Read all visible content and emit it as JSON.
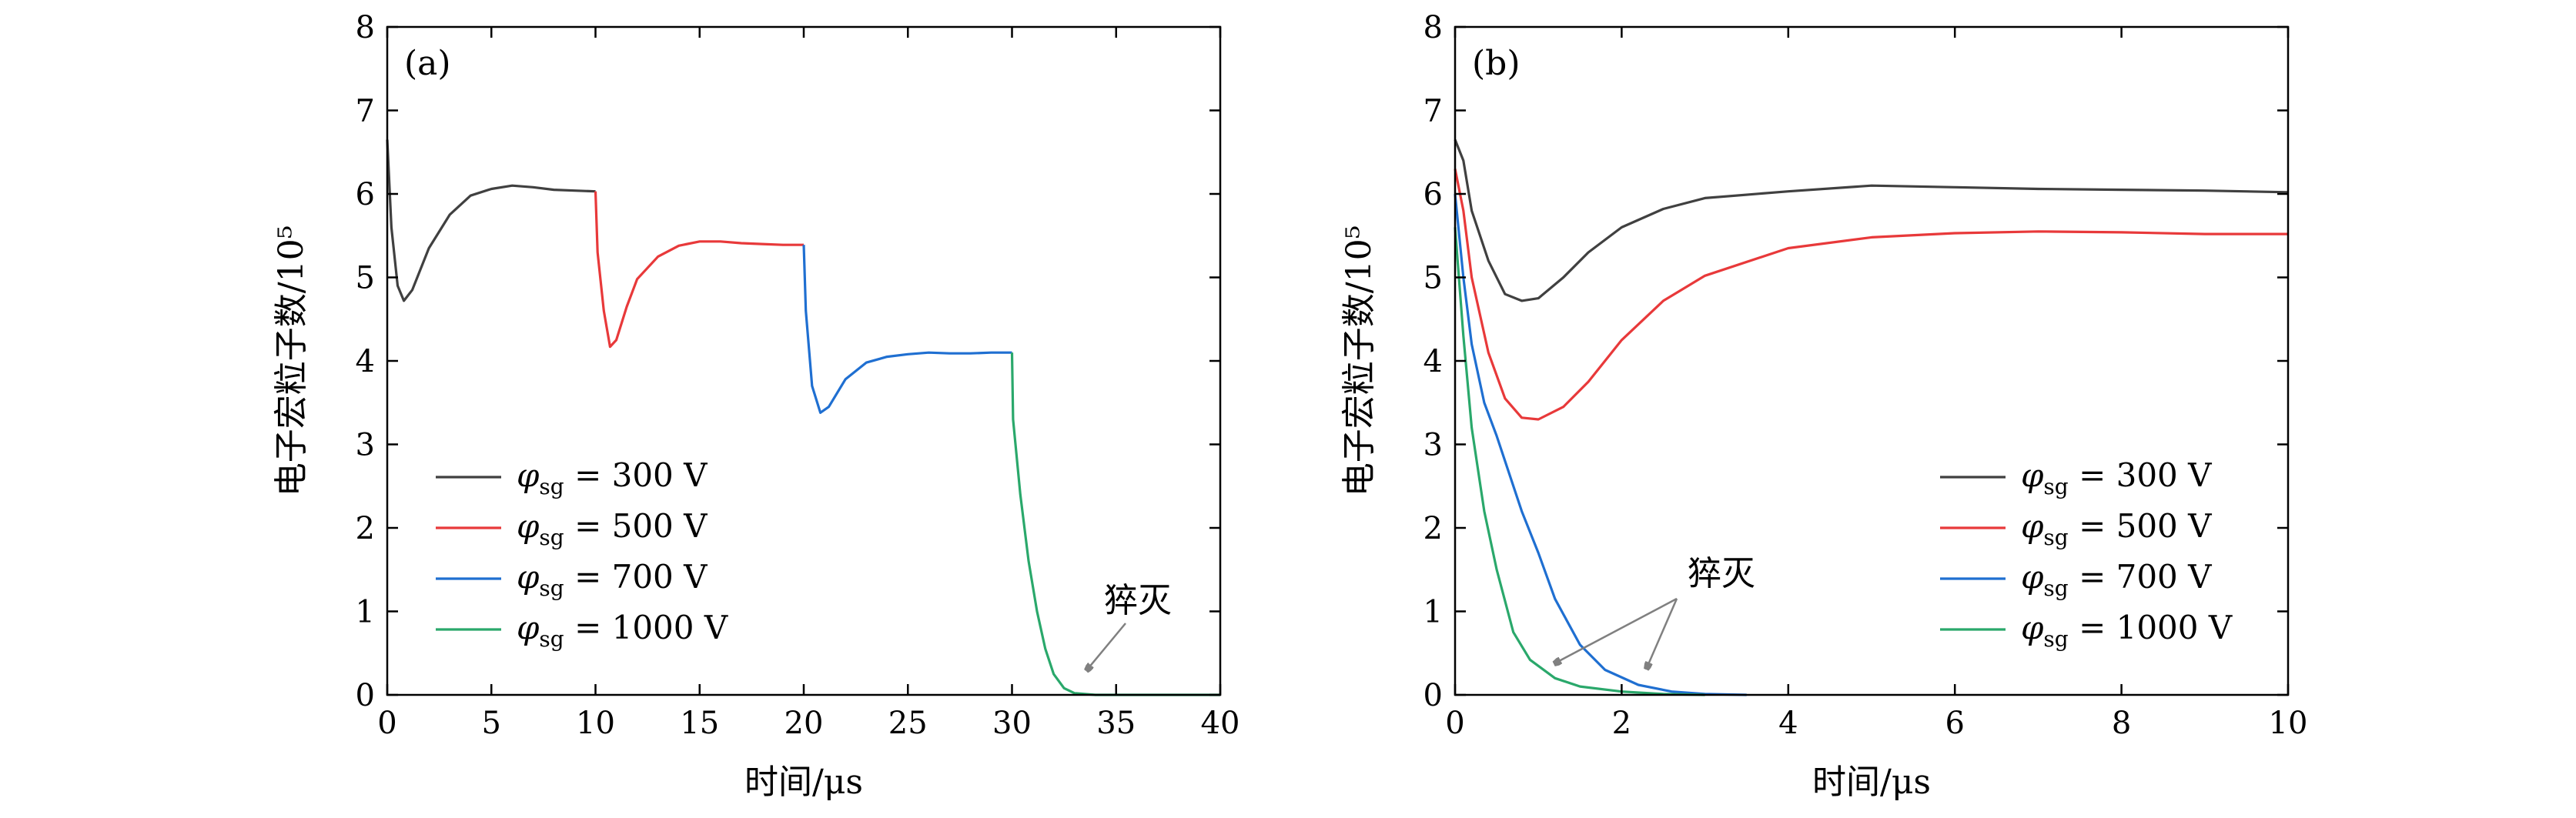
{
  "chart_data": [
    {
      "type": "line",
      "panel_label": "(a)",
      "xlabel": "时间/μs",
      "ylabel": "电子宏粒子数/10⁵",
      "xlim": [
        0,
        40
      ],
      "ylim": [
        0,
        8
      ],
      "xticks": [
        "0",
        "5",
        "10",
        "15",
        "20",
        "25",
        "30",
        "35",
        "40"
      ],
      "yticks": [
        "0",
        "1",
        "2",
        "3",
        "4",
        "5",
        "6",
        "7",
        "8"
      ],
      "legend_position": "bottom-left",
      "annotation": {
        "text": "猝灭",
        "points_to": [
          [
            33.6,
            0.3
          ]
        ]
      },
      "series": [
        {
          "name": "φsg = 300 V",
          "legend_main": "φ",
          "legend_sub": "sg",
          "legend_value": "= 300 V",
          "color": "#404040",
          "points": [
            [
              0,
              6.65
            ],
            [
              0.2,
              5.6
            ],
            [
              0.5,
              4.9
            ],
            [
              0.8,
              4.72
            ],
            [
              1.2,
              4.85
            ],
            [
              2,
              5.35
            ],
            [
              3,
              5.75
            ],
            [
              4,
              5.98
            ],
            [
              5,
              6.06
            ],
            [
              6,
              6.1
            ],
            [
              7,
              6.08
            ],
            [
              8,
              6.05
            ],
            [
              9,
              6.04
            ],
            [
              10,
              6.03
            ]
          ]
        },
        {
          "name": "φsg = 500 V",
          "legend_main": "φ",
          "legend_sub": "sg",
          "legend_value": "= 500 V",
          "color": "#e8393a",
          "points": [
            [
              10,
              6.03
            ],
            [
              10.1,
              5.3
            ],
            [
              10.4,
              4.6
            ],
            [
              10.7,
              4.17
            ],
            [
              11,
              4.25
            ],
            [
              11.5,
              4.65
            ],
            [
              12,
              4.98
            ],
            [
              13,
              5.25
            ],
            [
              14,
              5.38
            ],
            [
              15,
              5.43
            ],
            [
              16,
              5.43
            ],
            [
              17,
              5.41
            ],
            [
              18,
              5.4
            ],
            [
              19,
              5.39
            ],
            [
              20,
              5.39
            ]
          ]
        },
        {
          "name": "φsg = 700 V",
          "legend_main": "φ",
          "legend_sub": "sg",
          "legend_value": "= 700 V",
          "color": "#1f6fd1",
          "points": [
            [
              20,
              5.39
            ],
            [
              20.1,
              4.6
            ],
            [
              20.4,
              3.7
            ],
            [
              20.8,
              3.38
            ],
            [
              21.2,
              3.45
            ],
            [
              22,
              3.78
            ],
            [
              23,
              3.98
            ],
            [
              24,
              4.05
            ],
            [
              25,
              4.08
            ],
            [
              26,
              4.1
            ],
            [
              27,
              4.09
            ],
            [
              28,
              4.09
            ],
            [
              29,
              4.1
            ],
            [
              30,
              4.1
            ]
          ]
        },
        {
          "name": "φsg = 1000 V",
          "legend_main": "φ",
          "legend_sub": "sg",
          "legend_value": "= 1000 V",
          "color": "#2aa86b",
          "points": [
            [
              30,
              4.1
            ],
            [
              30.05,
              3.3
            ],
            [
              30.4,
              2.4
            ],
            [
              30.8,
              1.6
            ],
            [
              31.2,
              1.0
            ],
            [
              31.6,
              0.55
            ],
            [
              32,
              0.25
            ],
            [
              32.5,
              0.08
            ],
            [
              33,
              0.02
            ],
            [
              34,
              0
            ],
            [
              40,
              0
            ]
          ]
        }
      ]
    },
    {
      "type": "line",
      "panel_label": "(b)",
      "xlabel": "时间/μs",
      "ylabel": "电子宏粒子数/10⁵",
      "xlim": [
        0,
        10
      ],
      "ylim": [
        0,
        8
      ],
      "xticks": [
        "0",
        "2",
        "4",
        "6",
        "8",
        "10"
      ],
      "yticks": [
        "0",
        "1",
        "2",
        "3",
        "4",
        "5",
        "6",
        "7",
        "8"
      ],
      "legend_position": "bottom-right",
      "annotation": {
        "text": "猝灭",
        "points_to": [
          [
            1.2,
            0.38
          ],
          [
            2.3,
            0.32
          ]
        ]
      },
      "series": [
        {
          "name": "φsg = 300 V",
          "legend_main": "φ",
          "legend_sub": "sg",
          "legend_value": "= 300 V",
          "color": "#404040",
          "points": [
            [
              0,
              6.65
            ],
            [
              0.1,
              6.4
            ],
            [
              0.2,
              5.8
            ],
            [
              0.4,
              5.2
            ],
            [
              0.6,
              4.8
            ],
            [
              0.8,
              4.72
            ],
            [
              1.0,
              4.75
            ],
            [
              1.3,
              5.0
            ],
            [
              1.6,
              5.3
            ],
            [
              2,
              5.6
            ],
            [
              2.5,
              5.82
            ],
            [
              3,
              5.95
            ],
            [
              4,
              6.03
            ],
            [
              5,
              6.1
            ],
            [
              6,
              6.08
            ],
            [
              7,
              6.06
            ],
            [
              8,
              6.05
            ],
            [
              9,
              6.04
            ],
            [
              10,
              6.02
            ]
          ]
        },
        {
          "name": "φsg = 500 V",
          "legend_main": "φ",
          "legend_sub": "sg",
          "legend_value": "= 500 V",
          "color": "#e8393a",
          "points": [
            [
              0,
              6.3
            ],
            [
              0.1,
              5.8
            ],
            [
              0.2,
              5.0
            ],
            [
              0.4,
              4.1
            ],
            [
              0.6,
              3.55
            ],
            [
              0.8,
              3.32
            ],
            [
              1.0,
              3.3
            ],
            [
              1.3,
              3.45
            ],
            [
              1.6,
              3.75
            ],
            [
              2,
              4.25
            ],
            [
              2.5,
              4.72
            ],
            [
              3,
              5.02
            ],
            [
              4,
              5.35
            ],
            [
              5,
              5.48
            ],
            [
              6,
              5.53
            ],
            [
              7,
              5.55
            ],
            [
              8,
              5.54
            ],
            [
              9,
              5.52
            ],
            [
              10,
              5.52
            ]
          ]
        },
        {
          "name": "φsg = 700 V",
          "legend_main": "φ",
          "legend_sub": "sg",
          "legend_value": "= 700 V",
          "color": "#1f6fd1",
          "points": [
            [
              0,
              6.0
            ],
            [
              0.1,
              5.0
            ],
            [
              0.2,
              4.2
            ],
            [
              0.35,
              3.5
            ],
            [
              0.5,
              3.1
            ],
            [
              0.8,
              2.2
            ],
            [
              1.0,
              1.7
            ],
            [
              1.2,
              1.15
            ],
            [
              1.5,
              0.6
            ],
            [
              1.8,
              0.3
            ],
            [
              2.2,
              0.12
            ],
            [
              2.6,
              0.04
            ],
            [
              3,
              0.01
            ],
            [
              3.5,
              0
            ]
          ]
        },
        {
          "name": "φsg = 1000 V",
          "legend_main": "φ",
          "legend_sub": "sg",
          "legend_value": "= 1000 V",
          "color": "#2aa86b",
          "points": [
            [
              0,
              5.6
            ],
            [
              0.1,
              4.3
            ],
            [
              0.2,
              3.2
            ],
            [
              0.35,
              2.2
            ],
            [
              0.5,
              1.5
            ],
            [
              0.7,
              0.75
            ],
            [
              0.9,
              0.42
            ],
            [
              1.2,
              0.2
            ],
            [
              1.5,
              0.1
            ],
            [
              2,
              0.04
            ],
            [
              2.5,
              0.01
            ],
            [
              3,
              0
            ]
          ]
        }
      ]
    }
  ]
}
